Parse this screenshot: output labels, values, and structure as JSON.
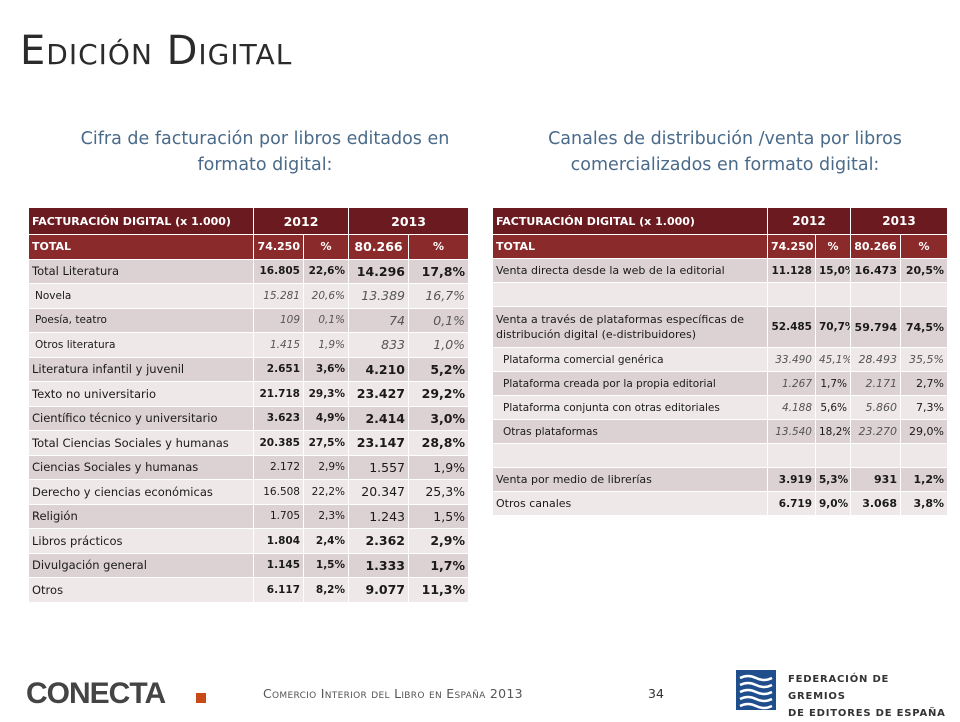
{
  "title": "Edición Digital",
  "subtitle_left": "Cifra de facturación por libros editados en formato digital:",
  "subtitle_right": "Canales de distribución /venta por libros comercializados en formato digital:",
  "table_left": {
    "header": {
      "label": "FACTURACIÓN DIGITAL (x 1.000)",
      "y1": "2012",
      "y2": "2013"
    },
    "total": {
      "label": "TOTAL",
      "v1": "74.250",
      "p1": "%",
      "v2": "80.266",
      "p2": "%"
    },
    "rows": [
      {
        "label": "Total Literatura",
        "v1": "16.805",
        "p1": "22,6%",
        "v2": "14.296",
        "p2": "17,8%"
      },
      {
        "label": "Novela",
        "v1": "15.281",
        "p1": "20,6%",
        "v2": "13.389",
        "p2": "16,7%"
      },
      {
        "label": "Poesía, teatro",
        "v1": "109",
        "p1": "0,1%",
        "v2": "74",
        "p2": "0,1%"
      },
      {
        "label": "Otros literatura",
        "v1": "1.415",
        "p1": "1,9%",
        "v2": "833",
        "p2": "1,0%"
      },
      {
        "label": "Literatura infantil y juvenil",
        "v1": "2.651",
        "p1": "3,6%",
        "v2": "4.210",
        "p2": "5,2%"
      },
      {
        "label": "Texto no universitario",
        "v1": "21.718",
        "p1": "29,3%",
        "v2": "23.427",
        "p2": "29,2%"
      },
      {
        "label": "Científico técnico y universitario",
        "v1": "3.623",
        "p1": "4,9%",
        "v2": "2.414",
        "p2": "3,0%"
      },
      {
        "label": "Total Ciencias Sociales y humanas",
        "v1": "20.385",
        "p1": "27,5%",
        "v2": "23.147",
        "p2": "28,8%"
      },
      {
        "label": "Ciencias Sociales y humanas",
        "v1": "2.172",
        "p1": "2,9%",
        "v2": "1.557",
        "p2": "1,9%"
      },
      {
        "label": "Derecho y ciencias económicas",
        "v1": "16.508",
        "p1": "22,2%",
        "v2": "20.347",
        "p2": "25,3%"
      },
      {
        "label": "Religión",
        "v1": "1.705",
        "p1": "2,3%",
        "v2": "1.243",
        "p2": "1,5%"
      },
      {
        "label": "Libros prácticos",
        "v1": "1.804",
        "p1": "2,4%",
        "v2": "2.362",
        "p2": "2,9%"
      },
      {
        "label": "Divulgación general",
        "v1": "1.145",
        "p1": "1,5%",
        "v2": "1.333",
        "p2": "1,7%"
      },
      {
        "label": "Otros",
        "v1": "6.117",
        "p1": "8,2%",
        "v2": "9.077",
        "p2": "11,3%"
      }
    ]
  },
  "table_right": {
    "header": {
      "label": "FACTURACIÓN DIGITAL (x 1.000)",
      "y1": "2012",
      "y2": "2013"
    },
    "total": {
      "label": "TOTAL",
      "v1": "74.250",
      "p1": "%",
      "v2": "80.266",
      "p2": "%"
    },
    "rows": [
      {
        "label": "Venta directa desde la web de la editorial",
        "v1": "11.128",
        "p1": "15,0%",
        "v2": "16.473",
        "p2": "20,5%"
      },
      {
        "label": "Venta a través de plataformas específicas de distribución digital (e-distribuidores)",
        "v1": "52.485",
        "p1": "70,7%",
        "v2": "59.794",
        "p2": "74,5%"
      },
      {
        "label": "Plataforma comercial genérica",
        "v1": "33.490",
        "p1": "45,1%",
        "v2": "28.493",
        "p2": "35,5%"
      },
      {
        "label": "Plataforma creada por la propia editorial",
        "v1": "1.267",
        "p1": "1,7%",
        "v2": "2.171",
        "p2": "2,7%"
      },
      {
        "label": "Plataforma conjunta con otras editoriales",
        "v1": "4.188",
        "p1": "5,6%",
        "v2": "5.860",
        "p2": "7,3%"
      },
      {
        "label": "Otras plataformas",
        "v1": "13.540",
        "p1": "18,2%",
        "v2": "23.270",
        "p2": "29,0%"
      },
      {
        "label": "Venta por medio de librerías",
        "v1": "3.919",
        "p1": "5,3%",
        "v2": "931",
        "p2": "1,2%"
      },
      {
        "label": "Otros canales",
        "v1": "6.719",
        "p1": "9,0%",
        "v2": "3.068",
        "p2": "3,8%"
      }
    ]
  },
  "footer": {
    "text": "Comercio Interior del Libro en España 2013",
    "page": "34",
    "logo_left": "CONECTA",
    "logo_right_line1": "FEDERACIÓN DE GREMIOS",
    "logo_right_line2": "DE EDITORES DE ESPAÑA"
  },
  "colors": {
    "header": "#6b1a1f",
    "total": "#8b2a2a",
    "row_light": "#efe8e8",
    "row_dark": "#ddd2d3",
    "accent": "#c84a16",
    "fed_blue": "#1f4e8c"
  }
}
